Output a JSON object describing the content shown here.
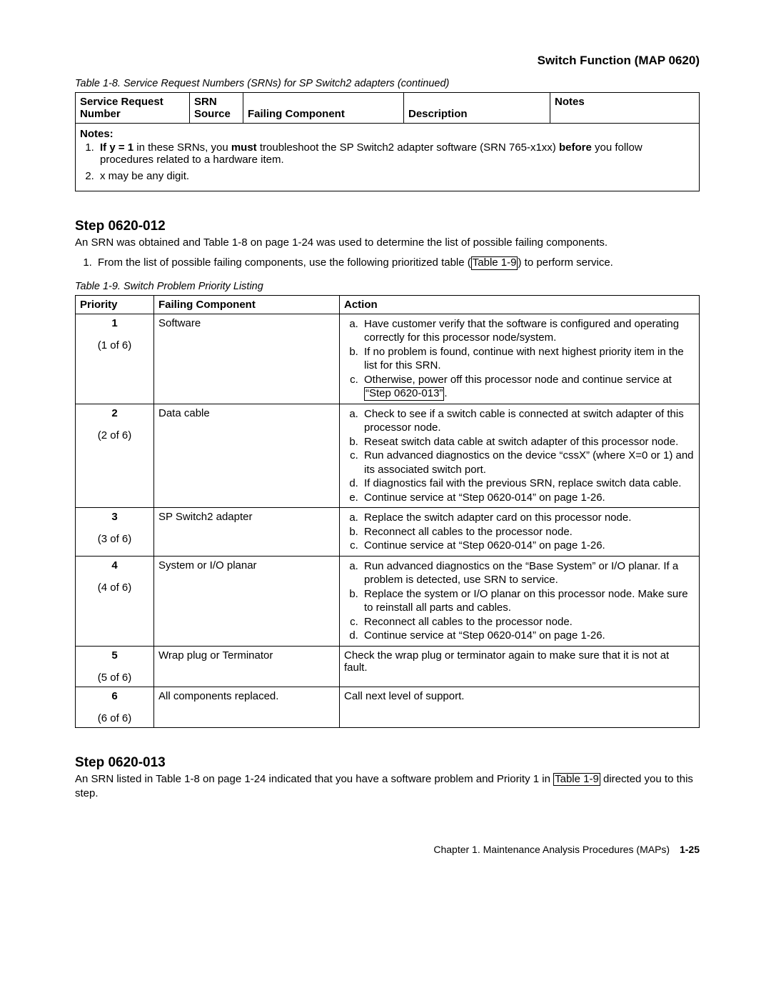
{
  "header": {
    "title": "Switch Function (MAP 0620)"
  },
  "table8": {
    "caption": "Table 1-8. Service Request Numbers (SRNs) for SP Switch2 adapters  (continued)",
    "headers": {
      "c1a": "Service Request",
      "c1b": "Number",
      "c2a": "SRN",
      "c2b": "Source",
      "c3": "Failing Component",
      "c4": "Description",
      "c5": "Notes"
    },
    "notes_label": "Notes:",
    "note1_a": "If y = 1",
    "note1_b": " in these SRNs, you ",
    "note1_c": "must",
    "note1_d": " troubleshoot the SP Switch2 adapter software (SRN 765-x1xx) ",
    "note1_e": "before",
    "note1_f": " you follow procedures related to a hardware item.",
    "note2": "x may be any digit."
  },
  "step012": {
    "heading": "Step 0620-012",
    "para": "An SRN was obtained and Table 1-8 on page 1-24 was used to determine the list of possible failing components.",
    "li_a": "From the list of possible failing components, use the following prioritized table (",
    "li_link": "Table 1-9",
    "li_b": ") to perform service."
  },
  "table9": {
    "caption": "Table 1-9. Switch Problem Priority Listing",
    "headers": {
      "c1": "Priority",
      "c2": "Failing Component",
      "c3": "Action"
    },
    "rows": [
      {
        "num": "1",
        "count": "(1 of 6)",
        "component": "Software",
        "actions": [
          "Have customer verify that the software is configured and operating correctly for this processor node/system.",
          "If no problem is found, continue with next highest priority item in the list for this SRN."
        ],
        "link_action_pre": "Otherwise, power off this processor node and continue service at ",
        "link_action_link": "“Step 0620-013”",
        "link_action_post": "."
      },
      {
        "num": "2",
        "count": "(2 of 6)",
        "component": "Data cable",
        "actions": [
          "Check to see if a switch cable is connected at switch adapter of this processor node.",
          "Reseat switch data cable at switch adapter of this processor node.",
          "Run advanced diagnostics on the device “cssX” (where X=0 or 1) and its associated switch port.",
          "If diagnostics fail with the previous SRN, replace switch data cable.",
          "Continue service at “Step 0620-014” on page 1-26."
        ]
      },
      {
        "num": "3",
        "count": "(3 of 6)",
        "component": "SP Switch2 adapter",
        "actions": [
          "Replace the switch adapter card on this processor node.",
          "Reconnect all cables to the processor node.",
          "Continue service at “Step 0620-014” on page 1-26."
        ]
      },
      {
        "num": "4",
        "count": "(4 of 6)",
        "component": "System or I/O planar",
        "actions": [
          "Run advanced diagnostics on the “Base System” or I/O planar. If a problem is detected, use SRN to service.",
          "Replace the system or I/O planar on this processor node. Make sure to reinstall all parts and cables.",
          "Reconnect all cables to the processor node.",
          "Continue service at “Step 0620-014” on page 1-26."
        ]
      },
      {
        "num": "5",
        "count": "(5 of 6)",
        "component": "Wrap plug or Terminator",
        "plain_action": "Check the wrap plug or terminator again to make sure that it is not at fault."
      },
      {
        "num": "6",
        "count": "(6 of 6)",
        "component": "All components replaced.",
        "plain_action": "Call next level of support."
      }
    ]
  },
  "step013": {
    "heading": "Step 0620-013",
    "para_a": "An SRN listed in Table 1-8 on page 1-24 indicated that you have a software problem and Priority 1 in ",
    "para_link": "Table 1-9",
    "para_b": " directed you to this step."
  },
  "footer": {
    "text": "Chapter 1. Maintenance Analysis Procedures (MAPs)",
    "page": "1-25"
  }
}
